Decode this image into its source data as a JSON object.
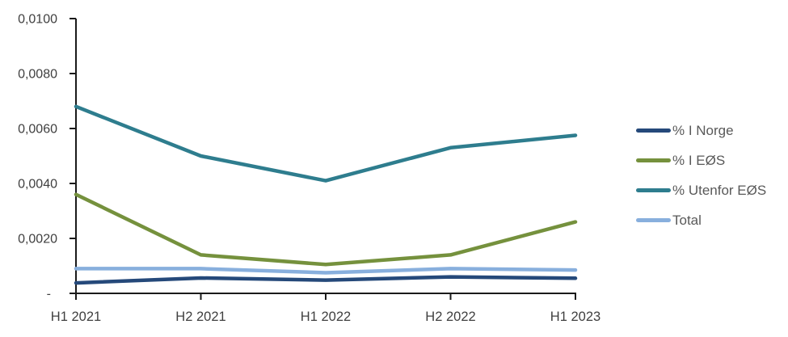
{
  "chart_data": {
    "type": "line",
    "categories": [
      "H1 2021",
      "H2 2021",
      "H1 2022",
      "H2 2022",
      "H1 2023"
    ],
    "series": [
      {
        "name": "% I Norge",
        "color": "#25497A",
        "values": [
          0.00038,
          0.00056,
          0.00048,
          0.0006,
          0.00055
        ]
      },
      {
        "name": "% I EØS",
        "color": "#75913D",
        "values": [
          0.0036,
          0.0014,
          0.00105,
          0.0014,
          0.0026
        ]
      },
      {
        "name": "% Utenfor EØS",
        "color": "#2E7D8E",
        "values": [
          0.0068,
          0.005,
          0.0041,
          0.0053,
          0.00575
        ]
      },
      {
        "name": "Total",
        "color": "#88AFDD",
        "values": [
          0.0009,
          0.0009,
          0.00075,
          0.0009,
          0.00085
        ]
      }
    ],
    "y_axis": {
      "min": 0,
      "max": 0.01,
      "step": 0.002,
      "tick_labels": [
        "-",
        "0,0020",
        "0,0040",
        "0,0060",
        "0,0080",
        "0,0100"
      ]
    },
    "x_axis": {
      "tick_labels": [
        "H1 2021",
        "H2 2021",
        "H1 2022",
        "H2 2022",
        "H1 2023"
      ]
    },
    "legend_position": "right",
    "grid": false,
    "axis_color": "#1A1A1A",
    "axis_text_color": "#3F3F3F",
    "legend_text_color": "#595959"
  }
}
